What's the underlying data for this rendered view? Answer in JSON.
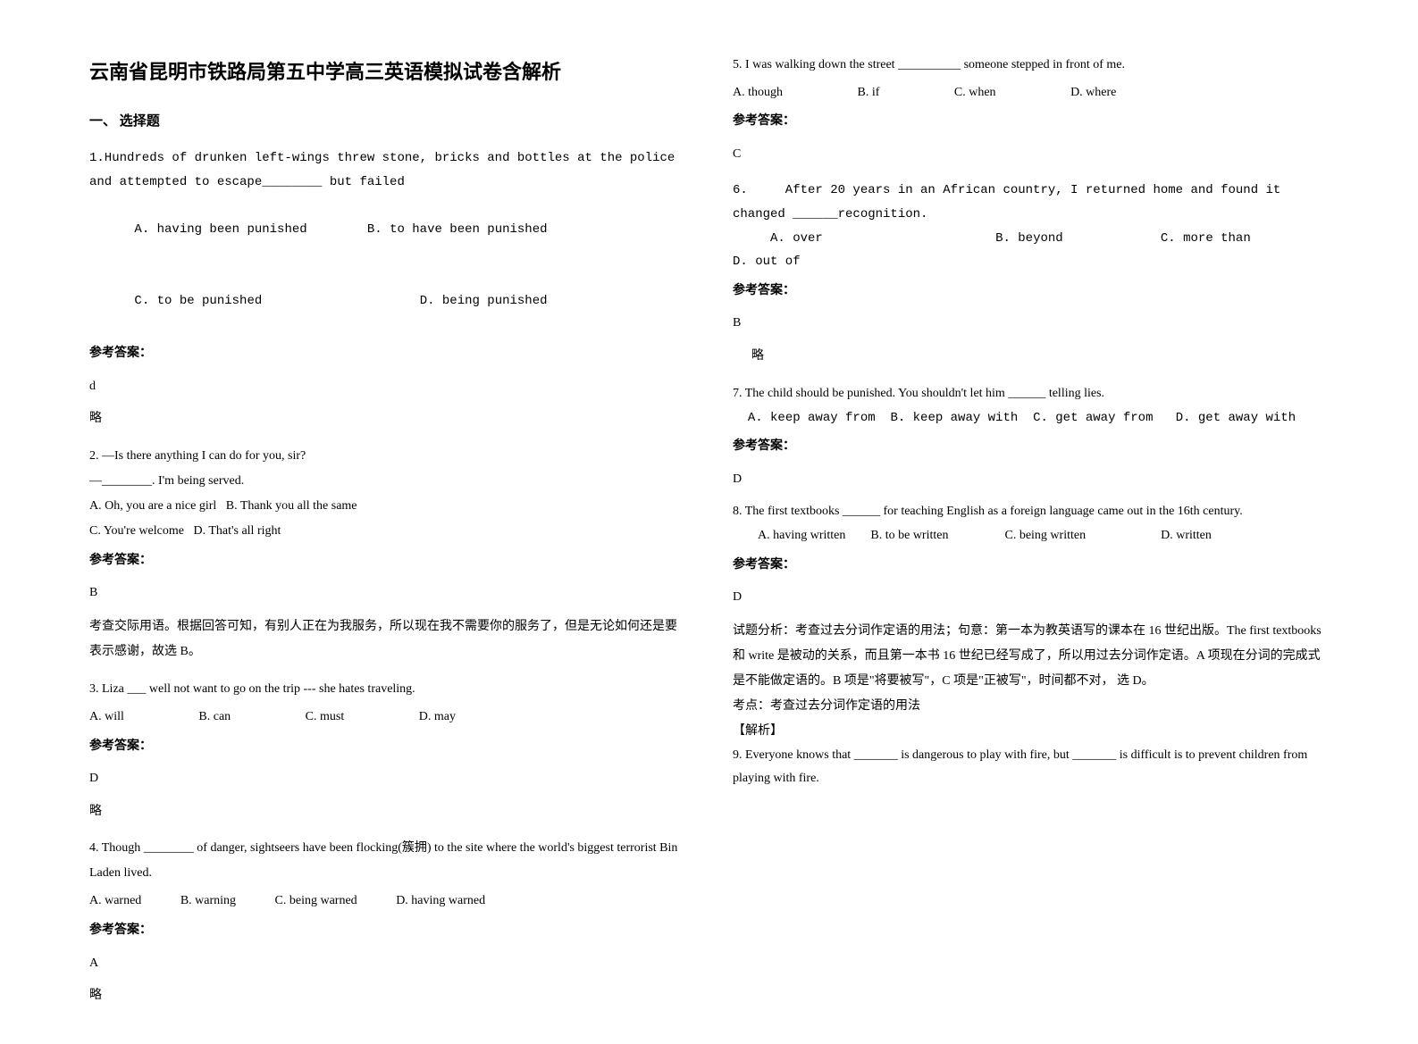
{
  "title": "云南省昆明市铁路局第五中学高三英语模拟试卷含解析",
  "sectionHead": "一、 选择题",
  "answerLabel": "参考答案：",
  "lue": "略",
  "q1": {
    "text": "1.Hundreds of drunken left-wings threw stone, bricks and bottles at the police and attempted to escape________ but failed",
    "optA": "A. having been punished",
    "optB": "B. to have been punished",
    "optC": "C. to be punished",
    "optD": "D. being punished",
    "ans": "d"
  },
  "q2": {
    "line1": "2. —Is there anything I can do for you, sir?",
    "line2": "—________. I'm being served.",
    "optA": "A. Oh, you are a nice girl",
    "optB": "B. Thank you all the same",
    "optC": "C. You're welcome",
    "optD": "D. That's all right",
    "ans": "B",
    "explain": "考查交际用语。根据回答可知，有别人正在为我服务，所以现在我不需要你的服务了，但是无论如何还是要表示感谢，故选 B。"
  },
  "q3": {
    "text": "3. Liza ___ well not want to go on the trip --- she hates traveling.",
    "optA": "A. will",
    "optB": "B. can",
    "optC": "C. must",
    "optD": "D. may",
    "ans": "D"
  },
  "q4": {
    "text": "4. Though ________ of danger, sightseers have been flocking(簇拥) to the site where the world's biggest terrorist Bin Laden lived.",
    "optA": "A. warned",
    "optB": "B. warning",
    "optC": "C. being warned",
    "optD": "D. having warned",
    "ans": "A"
  },
  "q5": {
    "text": "5. I was walking down the street __________ someone stepped in front of me.",
    "optA": "A. though",
    "optB": "B. if",
    "optC": "C. when",
    "optD": "D. where",
    "ans": "C"
  },
  "q6": {
    "text": "6.     After 20 years in an African country, I returned home and found it changed ______recognition.",
    "optA": "A. over",
    "optB": "B. beyond",
    "optC": "C. more than",
    "optD": "D. out of",
    "ans": "B"
  },
  "q7": {
    "text": "7. The child should be punished. You shouldn't let him ______ telling lies.",
    "opts": "  A. keep away from  B. keep away with  C. get away from   D. get away with",
    "ans": "D"
  },
  "q8": {
    "text": "8. The first textbooks ______ for teaching English as a foreign language came out in the 16th century.",
    "optA": "A. having written",
    "optB": "B. to be written",
    "optC": "C. being written",
    "optD": "D. written",
    "ans": "D",
    "explain1": "试题分析：考查过去分词作定语的用法；句意：第一本为教英语写的课本在 16 世纪出版。The first textbooks 和 write 是被动的关系，而且第一本书 16 世纪已经写成了，所以用过去分词作定语。A 项现在分词的完成式是不能做定语的。B 项是\"将要被写\"，C 项是\"正被写\"，时间都不对， 选 D。",
    "explain2": "考点：考查过去分词作定语的用法",
    "explain3": "【解析】"
  },
  "q9": {
    "text": "9. Everyone knows that _______ is dangerous to play with fire, but _______ is difficult is to prevent children from playing with fire."
  }
}
